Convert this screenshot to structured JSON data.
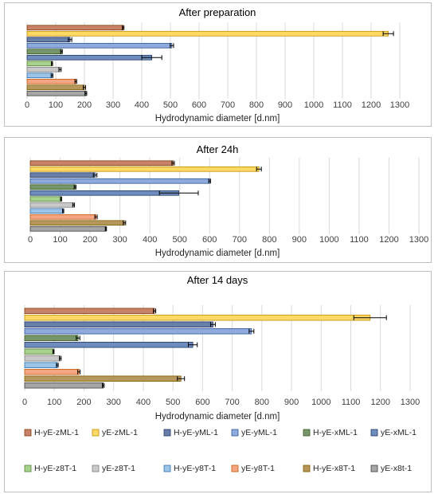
{
  "colors": {
    "series": [
      "#c9826a",
      "#ffd966",
      "#6a7fa8",
      "#8faadc",
      "#77976a",
      "#6e8cbe",
      "#a9d18e",
      "#c9c9c9",
      "#9dc3e6",
      "#f4a582",
      "#b6975b",
      "#a6a6a6"
    ],
    "edge": [
      "#843c0c",
      "#c09000",
      "#203864",
      "#2f5597",
      "#385723",
      "#1f3864",
      "#548235",
      "#7f7f7f",
      "#2e75b6",
      "#c55a11",
      "#7f6000",
      "#404040"
    ],
    "grid": "#d9d9d9"
  },
  "chart_data": [
    {
      "type": "bar",
      "orientation": "horizontal",
      "title": "After  preparation",
      "xlabel": "Hydrodynamic diameter [d.nm]",
      "xlim": [
        0,
        1300
      ],
      "xticks": [
        "0",
        "100",
        "200",
        "300",
        "400",
        "500",
        "600",
        "700",
        "800",
        "900",
        "1000",
        "1100",
        "1200",
        "1300"
      ],
      "grid": "vertical",
      "categories": [
        "H-yE-zML-1",
        "yE-zML-1",
        "H-yE-yML-1",
        "yE-yML-1",
        "H-yE-xML-1",
        "yE-xML-1",
        "H-yE-z8T-1",
        "yE-z8T-1",
        "H-yE-y8T-1",
        "yE-y8T-1",
        "H-yE-x8T-1",
        "yE-x8t-1"
      ],
      "values": [
        335,
        1260,
        150,
        505,
        120,
        435,
        87,
        115,
        87,
        170,
        200,
        205
      ],
      "errors": [
        3,
        18,
        6,
        6,
        3,
        35,
        2,
        4,
        3,
        3,
        4,
        3
      ]
    },
    {
      "type": "bar",
      "orientation": "horizontal",
      "title": "After 24h",
      "xlabel": "Hydrodynamic diameter [d.nm]",
      "xlim": [
        0,
        1300
      ],
      "xticks": [
        "0",
        "100",
        "200",
        "300",
        "400",
        "500",
        "600",
        "700",
        "800",
        "900",
        "1000",
        "1100",
        "1200",
        "1300"
      ],
      "grid": "vertical",
      "categories": [
        "H-yE-zML-1",
        "yE-zML-1",
        "H-yE-yML-1",
        "yE-yML-1",
        "H-yE-xML-1",
        "yE-xML-1",
        "H-yE-z8T-1",
        "yE-z8T-1",
        "H-yE-y8T-1",
        "yE-y8T-1",
        "H-yE-x8T-1",
        "yE-x8t-1"
      ],
      "values": [
        478,
        765,
        217,
        600,
        150,
        497,
        103,
        145,
        110,
        220,
        315,
        253
      ],
      "errors": [
        4,
        8,
        6,
        3,
        3,
        65,
        2,
        3,
        2,
        4,
        4,
        2
      ]
    },
    {
      "type": "bar",
      "orientation": "horizontal",
      "title": "After 14 days",
      "xlabel": "Hydrodynamic diameter [d.nm]",
      "xlim": [
        0,
        1300
      ],
      "xticks": [
        "0",
        "100",
        "200",
        "300",
        "400",
        "500",
        "600",
        "700",
        "800",
        "900",
        "1000",
        "1100",
        "1200",
        "1300"
      ],
      "grid": "vertical",
      "categories": [
        "H-yE-zML-1",
        "yE-zML-1",
        "H-yE-yML-1",
        "yE-yML-1",
        "H-yE-xML-1",
        "yE-xML-1",
        "H-yE-z8T-1",
        "yE-z8T-1",
        "H-yE-y8T-1",
        "yE-y8T-1",
        "H-yE-x8T-1",
        "yE-x8t-1"
      ],
      "values": [
        438,
        1165,
        635,
        765,
        180,
        567,
        97,
        120,
        110,
        183,
        527,
        265
      ],
      "errors": [
        4,
        55,
        8,
        8,
        6,
        15,
        2,
        3,
        3,
        4,
        12,
        3
      ]
    }
  ],
  "legend": {
    "placement": "bottom",
    "entries": [
      "H-yE-zML-1",
      "yE-zML-1",
      "H-yE-yML-1",
      "yE-yML-1",
      "H-yE-xML-1",
      "yE-xML-1",
      "H-yE-z8T-1",
      "yE-z8T-1",
      "H-yE-y8T-1",
      "yE-y8T-1",
      "H-yE-x8T-1",
      "yE-x8t-1"
    ]
  }
}
